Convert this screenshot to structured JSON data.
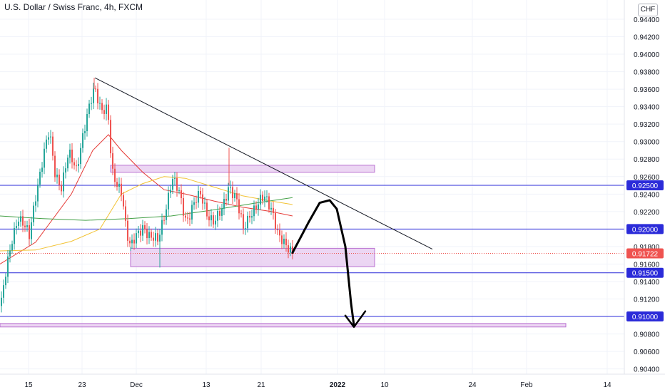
{
  "title": "U.S. Dollar / Swiss Franc, 4h, FXCM",
  "currency": "CHF",
  "chart_data": {
    "type": "candlestick",
    "symbol": "USDCHF",
    "interval": "4h",
    "source": "FXCM",
    "ylim": [
      0.9034,
      0.9462
    ],
    "y_ticks": [
      "0.94400",
      "0.94200",
      "0.94000",
      "0.93800",
      "0.93600",
      "0.93400",
      "0.93200",
      "0.93000",
      "0.92800",
      "0.92600",
      "0.92400",
      "0.92200",
      "0.91800",
      "0.91600",
      "0.91400",
      "0.91200",
      "0.90800",
      "0.90600",
      "0.90400"
    ],
    "x_ticks": [
      {
        "label": "15",
        "bold": false
      },
      {
        "label": "23",
        "bold": false
      },
      {
        "label": "Dec",
        "bold": false
      },
      {
        "label": "13",
        "bold": false
      },
      {
        "label": "21",
        "bold": false
      },
      {
        "label": "2022",
        "bold": true
      },
      {
        "label": "10",
        "bold": false
      },
      {
        "label": "24",
        "bold": false
      },
      {
        "label": "Feb",
        "bold": false
      },
      {
        "label": "14",
        "bold": false
      }
    ],
    "candle_path": [
      [
        0,
        0.9112
      ],
      [
        8,
        0.9152
      ],
      [
        16,
        0.9188
      ],
      [
        24,
        0.9216
      ],
      [
        32,
        0.9205
      ],
      [
        40,
        0.919
      ],
      [
        50,
        0.9245
      ],
      [
        60,
        0.9285
      ],
      [
        68,
        0.931
      ],
      [
        76,
        0.9265
      ],
      [
        85,
        0.925
      ],
      [
        95,
        0.9285
      ],
      [
        106,
        0.9268
      ],
      [
        114,
        0.9305
      ],
      [
        122,
        0.9332
      ],
      [
        132,
        0.936
      ],
      [
        140,
        0.934
      ],
      [
        150,
        0.9338
      ],
      [
        156,
        0.9262
      ],
      [
        162,
        0.925
      ],
      [
        170,
        0.9245
      ],
      [
        176,
        0.92
      ],
      [
        182,
        0.9178
      ],
      [
        190,
        0.919
      ],
      [
        200,
        0.9205
      ],
      [
        210,
        0.919
      ],
      [
        220,
        0.9185
      ],
      [
        230,
        0.922
      ],
      [
        240,
        0.9258
      ],
      [
        250,
        0.924
      ],
      [
        260,
        0.921
      ],
      [
        270,
        0.9228
      ],
      [
        280,
        0.9238
      ],
      [
        290,
        0.9218
      ],
      [
        300,
        0.9208
      ],
      [
        310,
        0.922
      ],
      [
        320,
        0.9252
      ],
      [
        330,
        0.9235
      ],
      [
        340,
        0.9198
      ],
      [
        350,
        0.922
      ],
      [
        360,
        0.9228
      ],
      [
        370,
        0.9235
      ],
      [
        380,
        0.9225
      ],
      [
        390,
        0.919
      ],
      [
        400,
        0.9178
      ],
      [
        410,
        0.9176
      ]
    ],
    "candle_highlights": [
      [
        132,
        0.9373
      ],
      [
        321,
        0.9293
      ],
      [
        183,
        0.9175
      ],
      [
        224,
        0.9156
      ]
    ],
    "last_x": 410,
    "moving_averages": [
      {
        "color": "#e53935",
        "points": [
          [
            0,
            0.916
          ],
          [
            50,
            0.9185
          ],
          [
            100,
            0.924
          ],
          [
            130,
            0.929
          ],
          [
            152,
            0.9308
          ],
          [
            170,
            0.929
          ],
          [
            200,
            0.9265
          ],
          [
            230,
            0.9245
          ],
          [
            260,
            0.924
          ],
          [
            300,
            0.9232
          ],
          [
            340,
            0.9225
          ],
          [
            380,
            0.922
          ],
          [
            410,
            0.9215
          ]
        ]
      },
      {
        "color": "#f2c232",
        "points": [
          [
            0,
            0.9175
          ],
          [
            50,
            0.9176
          ],
          [
            100,
            0.9186
          ],
          [
            140,
            0.92
          ],
          [
            170,
            0.924
          ],
          [
            200,
            0.9252
          ],
          [
            230,
            0.926
          ],
          [
            260,
            0.9258
          ],
          [
            300,
            0.9248
          ],
          [
            340,
            0.9238
          ],
          [
            380,
            0.9232
          ],
          [
            410,
            0.9228
          ]
        ]
      },
      {
        "color": "#43a047",
        "points": [
          [
            0,
            0.9215
          ],
          [
            60,
            0.9212
          ],
          [
            120,
            0.921
          ],
          [
            180,
            0.9212
          ],
          [
            240,
            0.9215
          ],
          [
            300,
            0.9222
          ],
          [
            360,
            0.923
          ],
          [
            410,
            0.9236
          ]
        ]
      }
    ],
    "horizontal_lines": [
      {
        "value": 0.925,
        "label": "0.92500",
        "color": "#2b2bd9"
      },
      {
        "value": 0.92,
        "label": "0.92000",
        "color": "#2b2bd9"
      },
      {
        "value": 0.915,
        "label": "0.91500",
        "color": "#2b2bd9"
      },
      {
        "value": 0.91,
        "label": "0.91000",
        "color": "#2b2bd9"
      }
    ],
    "zones": [
      {
        "x1": 155,
        "x2": 525,
        "y_top": 0.9273,
        "y_bottom": 0.9265
      },
      {
        "x1": 183,
        "x2": 525,
        "y_top": 0.9178,
        "y_bottom": 0.9157
      },
      {
        "x1": 0,
        "x2": 793,
        "y_top": 0.9092,
        "y_bottom": 0.9088
      }
    ],
    "trendline": {
      "from": [
        133,
        0.9373
      ],
      "to": [
        606,
        0.9177
      ]
    },
    "last_price": {
      "value": 0.91722,
      "label": "0.91722",
      "color": "#ef5350"
    },
    "projection_path": [
      [
        410,
        0.9173
      ],
      [
        432,
        0.9207
      ],
      [
        448,
        0.923
      ],
      [
        462,
        0.9233
      ],
      [
        472,
        0.9223
      ],
      [
        484,
        0.918
      ],
      [
        492,
        0.9115
      ],
      [
        496,
        0.909
      ]
    ],
    "arrow_head": [
      [
        484,
        0.9101
      ],
      [
        496,
        0.9088
      ],
      [
        512,
        0.9106
      ]
    ],
    "grid": true,
    "colors": {
      "up": "#26a69a",
      "down": "#ef5350",
      "zone_fill": "#e6c8ef",
      "zone_stroke": "#b86fd0",
      "grid": "#f0f3fa"
    }
  }
}
